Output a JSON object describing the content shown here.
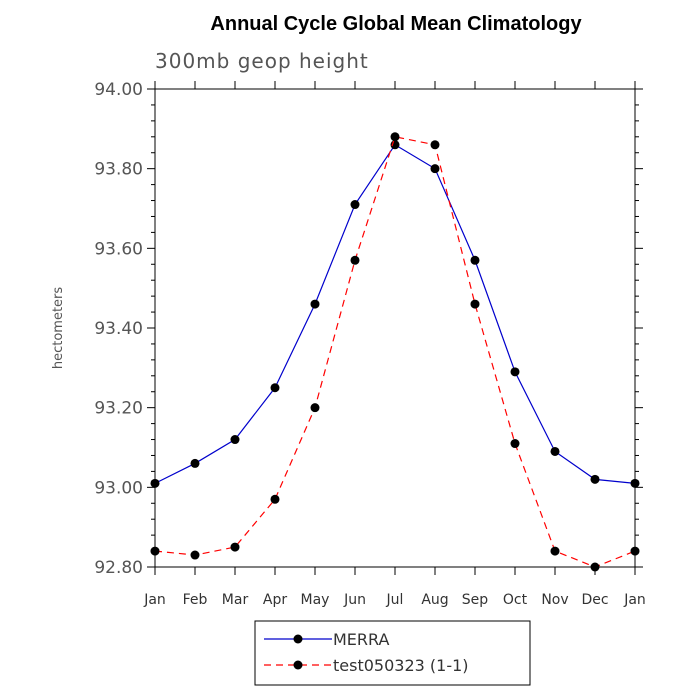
{
  "chart_data": {
    "type": "line",
    "title": "Annual Cycle Global Mean Climatology",
    "subtitle": "300mb geop height",
    "xlabel": "",
    "ylabel": "hectometers",
    "categories": [
      "Jan",
      "Feb",
      "Mar",
      "Apr",
      "May",
      "Jun",
      "Jul",
      "Aug",
      "Sep",
      "Oct",
      "Nov",
      "Dec",
      "Jan"
    ],
    "ylim": [
      92.8,
      94.0
    ],
    "yticks": [
      "92.80",
      "93.00",
      "93.20",
      "93.40",
      "93.60",
      "93.80",
      "94.00"
    ],
    "grid": false,
    "legend_position": "bottom-center",
    "series": [
      {
        "name": "MERRA",
        "color": "#0000cc",
        "dash": "solid",
        "values": [
          93.01,
          93.06,
          93.12,
          93.25,
          93.46,
          93.71,
          93.86,
          93.8,
          93.57,
          93.29,
          93.09,
          93.02,
          93.01
        ]
      },
      {
        "name": "test050323 (1-1)",
        "color": "#ff0000",
        "dash": "dashed",
        "values": [
          92.84,
          92.83,
          92.85,
          92.97,
          93.2,
          93.57,
          93.88,
          93.86,
          93.46,
          93.11,
          92.84,
          92.8,
          92.84
        ]
      }
    ]
  },
  "colors": {
    "axis": "#000000",
    "marker": "#000000"
  }
}
